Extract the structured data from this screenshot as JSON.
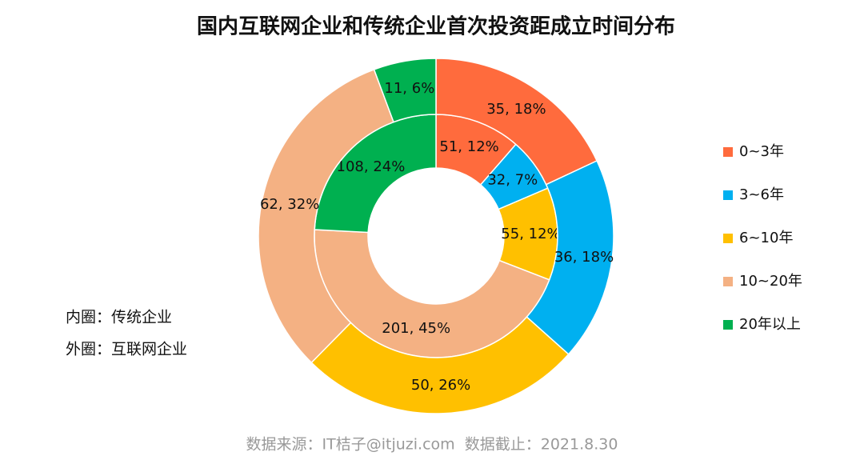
{
  "chart_data": {
    "type": "donut",
    "title": "国内互联网企业和传统企业首次投资距成立时间分布",
    "categories": [
      "0~3年",
      "3~6年",
      "6~10年",
      "10~20年",
      "20年以上"
    ],
    "colors": [
      "#ff6b3d",
      "#00b0f0",
      "#ffc000",
      "#f4b183",
      "#00b050"
    ],
    "series": [
      {
        "name": "内圈：传统企业",
        "values": [
          51,
          32,
          55,
          201,
          108
        ],
        "value_labels": [
          "51, 12%",
          "32, 7%",
          "55, 12%",
          "201, 45%",
          "108, 24%"
        ]
      },
      {
        "name": "外圈：互联网企业",
        "values": [
          35,
          36,
          50,
          62,
          11
        ],
        "value_labels": [
          "35, 18%",
          "36, 18%",
          "50, 26%",
          "62, 32%",
          "11, 6%"
        ]
      }
    ],
    "source": "数据来源：IT桔子@itjuzi.com  数据截止：2021.8.30"
  }
}
